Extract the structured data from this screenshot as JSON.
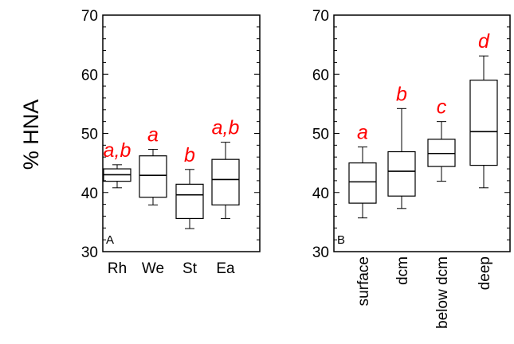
{
  "chart_data": {
    "type": "box",
    "ylabel": "% HNA",
    "ylim": [
      30,
      70
    ],
    "yticks": [
      30,
      40,
      50,
      60,
      70
    ],
    "colors": {
      "box": "#000000",
      "significance": "#ff0000"
    },
    "panels": [
      {
        "label": "A",
        "categories": [
          "Rh",
          "We",
          "St",
          "Ea"
        ],
        "boxes": [
          {
            "category": "Rh",
            "whisker_low": 40.8,
            "q1": 41.9,
            "median": 43.0,
            "q3": 44.0,
            "whisker_high": 44.7,
            "group": "a,b"
          },
          {
            "category": "We",
            "whisker_low": 37.9,
            "q1": 39.2,
            "median": 42.9,
            "q3": 46.2,
            "whisker_high": 47.3,
            "group": "a"
          },
          {
            "category": "St",
            "whisker_low": 33.9,
            "q1": 35.6,
            "median": 39.6,
            "q3": 41.4,
            "whisker_high": 43.9,
            "group": "b"
          },
          {
            "category": "Ea",
            "whisker_low": 35.6,
            "q1": 37.9,
            "median": 42.2,
            "q3": 45.6,
            "whisker_high": 48.5,
            "group": "a,b"
          }
        ]
      },
      {
        "label": "B",
        "categories": [
          "surface",
          "dcm",
          "below dcm",
          "deep"
        ],
        "boxes": [
          {
            "category": "surface",
            "whisker_low": 35.7,
            "q1": 38.2,
            "median": 41.8,
            "q3": 45.0,
            "whisker_high": 47.7,
            "group": "a"
          },
          {
            "category": "dcm",
            "whisker_low": 37.3,
            "q1": 39.4,
            "median": 43.6,
            "q3": 46.9,
            "whisker_high": 54.2,
            "group": "b"
          },
          {
            "category": "below dcm",
            "whisker_low": 41.9,
            "q1": 44.4,
            "median": 46.6,
            "q3": 49.0,
            "whisker_high": 52.0,
            "group": "c"
          },
          {
            "category": "deep",
            "whisker_low": 40.8,
            "q1": 44.6,
            "median": 50.3,
            "q3": 59.0,
            "whisker_high": 63.1,
            "group": "d"
          }
        ]
      }
    ]
  }
}
